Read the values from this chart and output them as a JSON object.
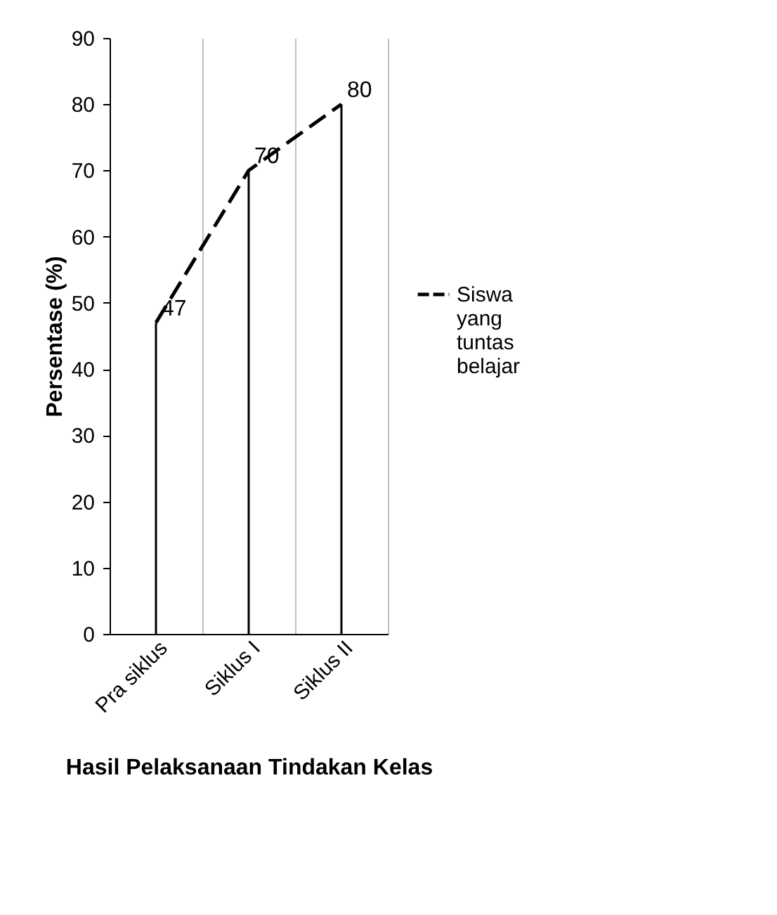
{
  "chart_data": {
    "type": "line",
    "xlabel": "Hasil Pelaksanaan Tindakan Kelas",
    "ylabel": "Persentase (%)",
    "categories": [
      "Pra siklus",
      "Siklus I",
      "Siklus II"
    ],
    "series": [
      {
        "name": "Siswa yang tuntas belajar",
        "color": "#000000",
        "values": [
          47,
          70,
          80
        ]
      }
    ],
    "ylim": [
      0,
      90
    ],
    "yticks": [
      0,
      10,
      20,
      30,
      40,
      50,
      60,
      70,
      80,
      90
    ],
    "grid": "x",
    "legend": "right",
    "line_style": "dashed",
    "marker": "none",
    "data_labels": true
  }
}
